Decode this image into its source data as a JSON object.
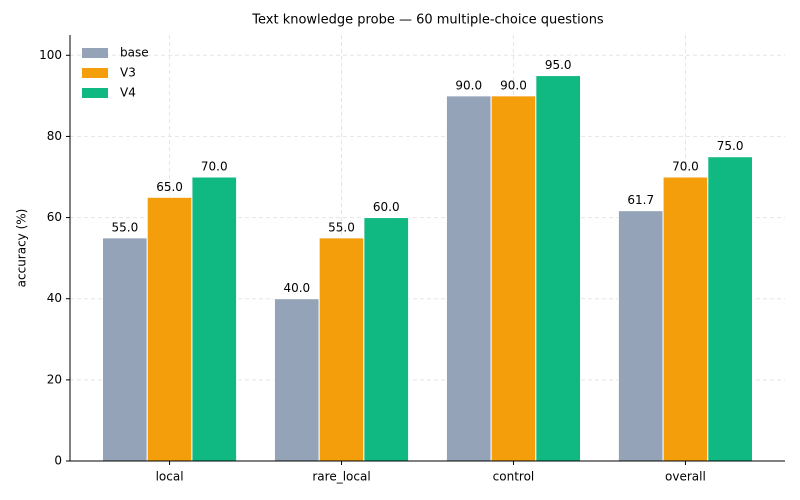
{
  "chart_data": {
    "type": "bar",
    "title": "Text knowledge probe — 60 multiple-choice questions",
    "y_label": "accuracy (%)",
    "categories": [
      "local",
      "rare_local",
      "control",
      "overall"
    ],
    "series": [
      {
        "name": "base",
        "color": "#94a3b8",
        "values": [
          55,
          40,
          90,
          61.7
        ],
        "value_labels": [
          "55.0",
          "40.0",
          "90.0",
          "61.7"
        ]
      },
      {
        "name": "V3",
        "color": "#f59e0b",
        "values": [
          65,
          55,
          90,
          70
        ],
        "value_labels": [
          "65.0",
          "55.0",
          "90.0",
          "70.0"
        ]
      },
      {
        "name": "V4",
        "color": "#10b981",
        "values": [
          70,
          60,
          95,
          75
        ],
        "value_labels": [
          "70.0",
          "60.0",
          "95.0",
          "75.0"
        ]
      }
    ],
    "ylim": [
      0,
      105
    ],
    "yticks": [
      0,
      20,
      40,
      60,
      80,
      100
    ],
    "grid": true,
    "legend": "upper-left"
  }
}
